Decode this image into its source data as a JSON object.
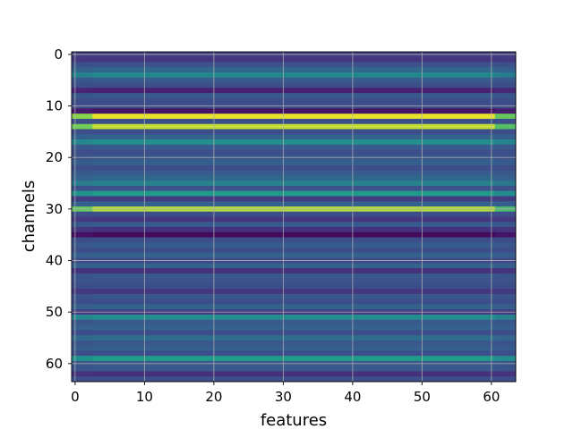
{
  "chart_data": {
    "type": "heatmap",
    "title": "",
    "xlabel": "features",
    "ylabel": "channels",
    "xlim": [
      -0.5,
      63.5
    ],
    "ylim": [
      63.5,
      -0.5
    ],
    "x_ticks": [
      0,
      10,
      20,
      30,
      40,
      50,
      60
    ],
    "y_ticks": [
      0,
      10,
      20,
      30,
      40,
      50,
      60
    ],
    "grid": true,
    "colormap": "viridis",
    "n_rows": 64,
    "n_cols": 64,
    "row_values": [
      0.22,
      0.2,
      0.32,
      0.42,
      0.58,
      0.36,
      0.3,
      0.12,
      0.35,
      0.3,
      0.3,
      0.07,
      0.98,
      0.3,
      0.95,
      0.3,
      0.4,
      0.62,
      0.36,
      0.3,
      0.34,
      0.38,
      0.3,
      0.36,
      0.42,
      0.55,
      0.32,
      0.68,
      0.22,
      0.4,
      0.93,
      0.3,
      0.2,
      0.36,
      0.18,
      0.03,
      0.3,
      0.36,
      0.3,
      0.4,
      0.27,
      0.4,
      0.17,
      0.34,
      0.32,
      0.3,
      0.2,
      0.34,
      0.3,
      0.4,
      0.22,
      0.62,
      0.35,
      0.4,
      0.3,
      0.45,
      0.34,
      0.38,
      0.3,
      0.68,
      0.35,
      0.34,
      0.17,
      0.3
    ]
  }
}
